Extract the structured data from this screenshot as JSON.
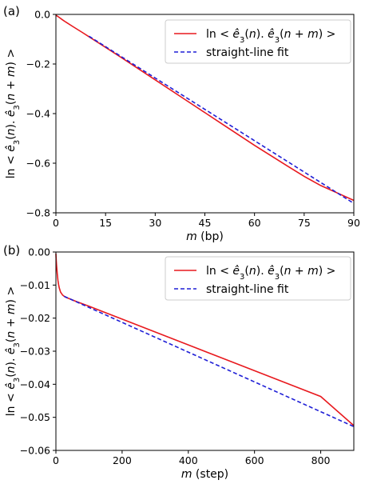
{
  "colors": {
    "red": "#e8191e",
    "blue": "#1f1fd6",
    "axis": "#000000",
    "legend_border": "#cccccc"
  },
  "chart_data": [
    {
      "type": "line",
      "panel_label": "(a)",
      "xlabel": "m (bp)",
      "ylabel": "ln < ê3(n). ê3(n+m) >",
      "xlim": [
        0,
        90
      ],
      "ylim": [
        -0.8,
        0.0
      ],
      "xticks": [
        0,
        15,
        30,
        45,
        60,
        75,
        90
      ],
      "xtick_labels": [
        "0",
        "15",
        "30",
        "45",
        "60",
        "75",
        "90"
      ],
      "yticks": [
        0.0,
        -0.2,
        -0.4,
        -0.6,
        -0.8
      ],
      "ytick_labels": [
        "0.0",
        "−0.2",
        "−0.4",
        "−0.6",
        "−0.8"
      ],
      "grid": false,
      "legend_placement": "top-right",
      "series": [
        {
          "name": "ln < ê3(n). ê3(n+m) >",
          "style": "solid",
          "color": "red",
          "x": [
            0,
            1,
            2,
            3,
            5,
            8,
            10,
            15,
            20,
            30,
            40,
            45,
            50,
            60,
            70,
            75,
            80,
            85,
            90
          ],
          "y": [
            -0.003,
            -0.012,
            -0.022,
            -0.031,
            -0.048,
            -0.073,
            -0.09,
            -0.133,
            -0.176,
            -0.264,
            -0.352,
            -0.396,
            -0.44,
            -0.528,
            -0.612,
            -0.653,
            -0.69,
            -0.72,
            -0.75
          ]
        },
        {
          "name": "straight-line fit",
          "style": "dashed",
          "color": "blue",
          "x": [
            10,
            90
          ],
          "y": [
            -0.088,
            -0.762
          ]
        }
      ]
    },
    {
      "type": "line",
      "panel_label": "(b)",
      "xlabel": "m (step)",
      "ylabel": "ln < ê3(n). ê3(n+m) >",
      "xlim": [
        0,
        900
      ],
      "ylim": [
        -0.06,
        0.0
      ],
      "xticks": [
        0,
        200,
        400,
        600,
        800
      ],
      "xtick_labels": [
        "0",
        "200",
        "400",
        "600",
        "800"
      ],
      "yticks": [
        0.0,
        -0.01,
        -0.02,
        -0.03,
        -0.04,
        -0.05,
        -0.06
      ],
      "ytick_labels": [
        "0.00",
        "−0.01",
        "−0.02",
        "−0.03",
        "−0.04",
        "−0.05",
        "−0.06"
      ],
      "grid": false,
      "legend_placement": "top-right",
      "series": [
        {
          "name": "ln < ê3(n). ê3(n+m) >",
          "style": "solid",
          "color": "red",
          "x": [
            0,
            1,
            2,
            4,
            6,
            8,
            10,
            14,
            20,
            25,
            30,
            40,
            60,
            100,
            200,
            300,
            400,
            500,
            600,
            700,
            800,
            900
          ],
          "y": [
            -0.0005,
            -0.0025,
            -0.004,
            -0.0065,
            -0.0085,
            -0.0098,
            -0.0108,
            -0.0121,
            -0.013,
            -0.0134,
            -0.0137,
            -0.0141,
            -0.0149,
            -0.0164,
            -0.0203,
            -0.0242,
            -0.0281,
            -0.032,
            -0.0359,
            -0.0398,
            -0.0437,
            -0.0525
          ]
        },
        {
          "name": "straight-line fit",
          "style": "dashed",
          "color": "blue",
          "x": [
            25,
            900
          ],
          "y": [
            -0.0134,
            -0.0528
          ]
        }
      ]
    }
  ]
}
